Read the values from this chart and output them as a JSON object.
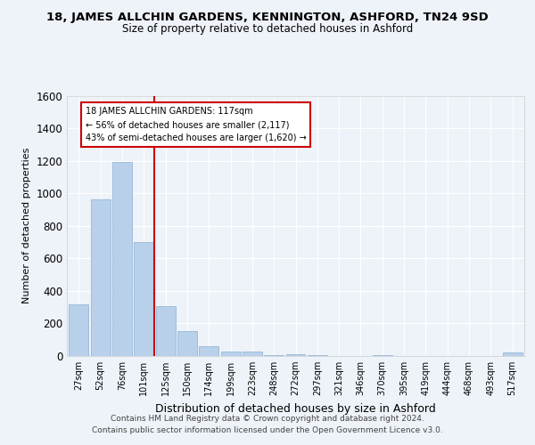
{
  "title": "18, JAMES ALLCHIN GARDENS, KENNINGTON, ASHFORD, TN24 9SD",
  "subtitle": "Size of property relative to detached houses in Ashford",
  "xlabel": "Distribution of detached houses by size in Ashford",
  "ylabel": "Number of detached properties",
  "bins": [
    "27sqm",
    "52sqm",
    "76sqm",
    "101sqm",
    "125sqm",
    "150sqm",
    "174sqm",
    "199sqm",
    "223sqm",
    "248sqm",
    "272sqm",
    "297sqm",
    "321sqm",
    "346sqm",
    "370sqm",
    "395sqm",
    "419sqm",
    "444sqm",
    "468sqm",
    "493sqm",
    "517sqm"
  ],
  "bar_heights": [
    320,
    965,
    1190,
    700,
    305,
    155,
    60,
    30,
    25,
    8,
    10,
    5,
    2,
    2,
    5,
    2,
    2,
    2,
    2,
    2,
    20
  ],
  "bar_color": "#b8d0ea",
  "bar_edge_color": "#8ab0d0",
  "vline_x": 3.5,
  "vline_color": "#cc0000",
  "annotation_line1": "18 JAMES ALLCHIN GARDENS: 117sqm",
  "annotation_line2": "← 56% of detached houses are smaller (2,117)",
  "annotation_line3": "43% of semi-detached houses are larger (1,620) →",
  "annotation_box_color": "#cc0000",
  "ylim": [
    0,
    1600
  ],
  "yticks": [
    0,
    200,
    400,
    600,
    800,
    1000,
    1200,
    1400,
    1600
  ],
  "footer": "Contains HM Land Registry data © Crown copyright and database right 2024.\nContains public sector information licensed under the Open Government Licence v3.0.",
  "background_color": "#eef2f9",
  "grid_color": "#ffffff"
}
